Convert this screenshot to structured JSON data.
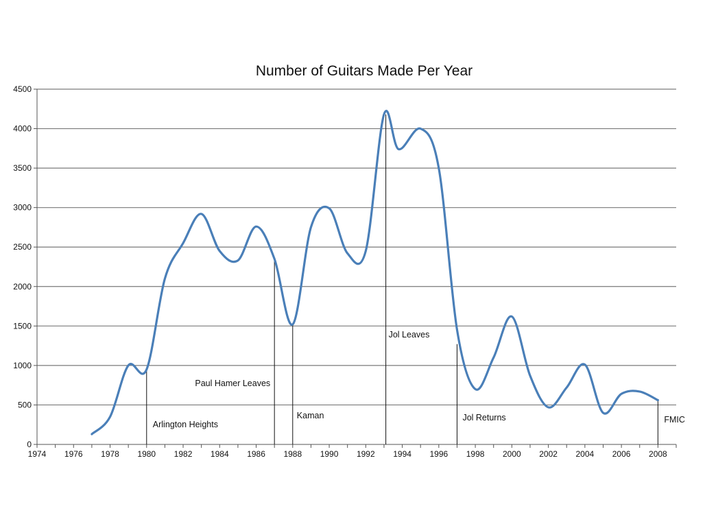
{
  "chart_data": {
    "type": "line",
    "title": "Number of Guitars Made Per Year",
    "xlabel": "",
    "ylabel": "",
    "xlim": [
      1974,
      2009
    ],
    "ylim": [
      0,
      4500
    ],
    "x_ticks": [
      "1974",
      "1976",
      "1978",
      "1980",
      "1982",
      "1984",
      "1986",
      "1988",
      "1990",
      "1992",
      "1994",
      "1996",
      "1998",
      "2000",
      "2002",
      "2004",
      "2006",
      "2008"
    ],
    "y_ticks": [
      "0",
      "500",
      "1000",
      "1500",
      "2000",
      "2500",
      "3000",
      "3500",
      "4000",
      "4500"
    ],
    "grid": true,
    "legend": "none",
    "colors": {
      "series": "#4a7fb8"
    },
    "series": [
      {
        "x": [
          1977,
          1978,
          1979,
          1980,
          1981,
          1982,
          1983,
          1984,
          1985,
          1986,
          1987,
          1988,
          1989,
          1990,
          1991,
          1992,
          1993,
          1993.8,
          1995,
          1996,
          1997,
          1998,
          1999,
          2000,
          2001,
          2002,
          2003,
          2004,
          2005,
          2006,
          2007,
          2008
        ],
        "y": [
          130,
          350,
          1000,
          950,
          2100,
          2550,
          2920,
          2450,
          2330,
          2760,
          2350,
          1520,
          2750,
          2990,
          2420,
          2450,
          4180,
          3740,
          4000,
          3500,
          1450,
          700,
          1100,
          1620,
          870,
          470,
          720,
          1010,
          400,
          640,
          670,
          560
        ]
      }
    ],
    "annotations": [
      {
        "x": 1980,
        "y": 950,
        "label": "Arlington Heights"
      },
      {
        "x": 1987,
        "y": 2330,
        "label": "Paul Hamer Leaves"
      },
      {
        "x": 1988,
        "y": 1520,
        "label": "Kaman"
      },
      {
        "x": 1993.1,
        "y": 4180,
        "label": "Jol Leaves"
      },
      {
        "x": 1997,
        "y": 1270,
        "label": "Jol Returns"
      },
      {
        "x": 2008,
        "y": 560,
        "label": "FMIC"
      }
    ]
  }
}
